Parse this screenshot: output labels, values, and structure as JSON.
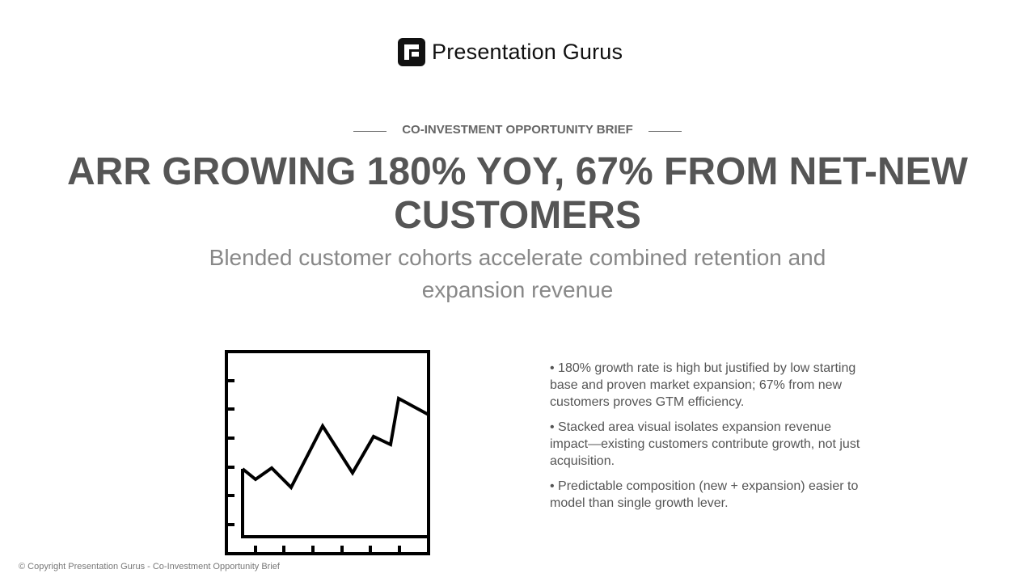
{
  "header": {
    "brand": "Presentation Gurus",
    "eyebrow": "CO-INVESTMENT OPPORTUNITY BRIEF"
  },
  "title": "ARR GROWING 180% YOY, 67% FROM NET-NEW CUSTOMERS",
  "subtitle": "Blended customer cohorts accelerate combined retention and expansion revenue",
  "bullets": [
    "• 180% growth rate is high but justified by low starting base and proven market expansion; 67% from new customers proves GTM efficiency.",
    "• Stacked area visual isolates expansion revenue impact—existing customers contribute growth, not just acquisition.",
    "• Predictable composition (new + expansion) easier to model than single growth lever."
  ],
  "footer": "© Copyright Presentation Gurus - Co-Investment Opportunity Brief"
}
